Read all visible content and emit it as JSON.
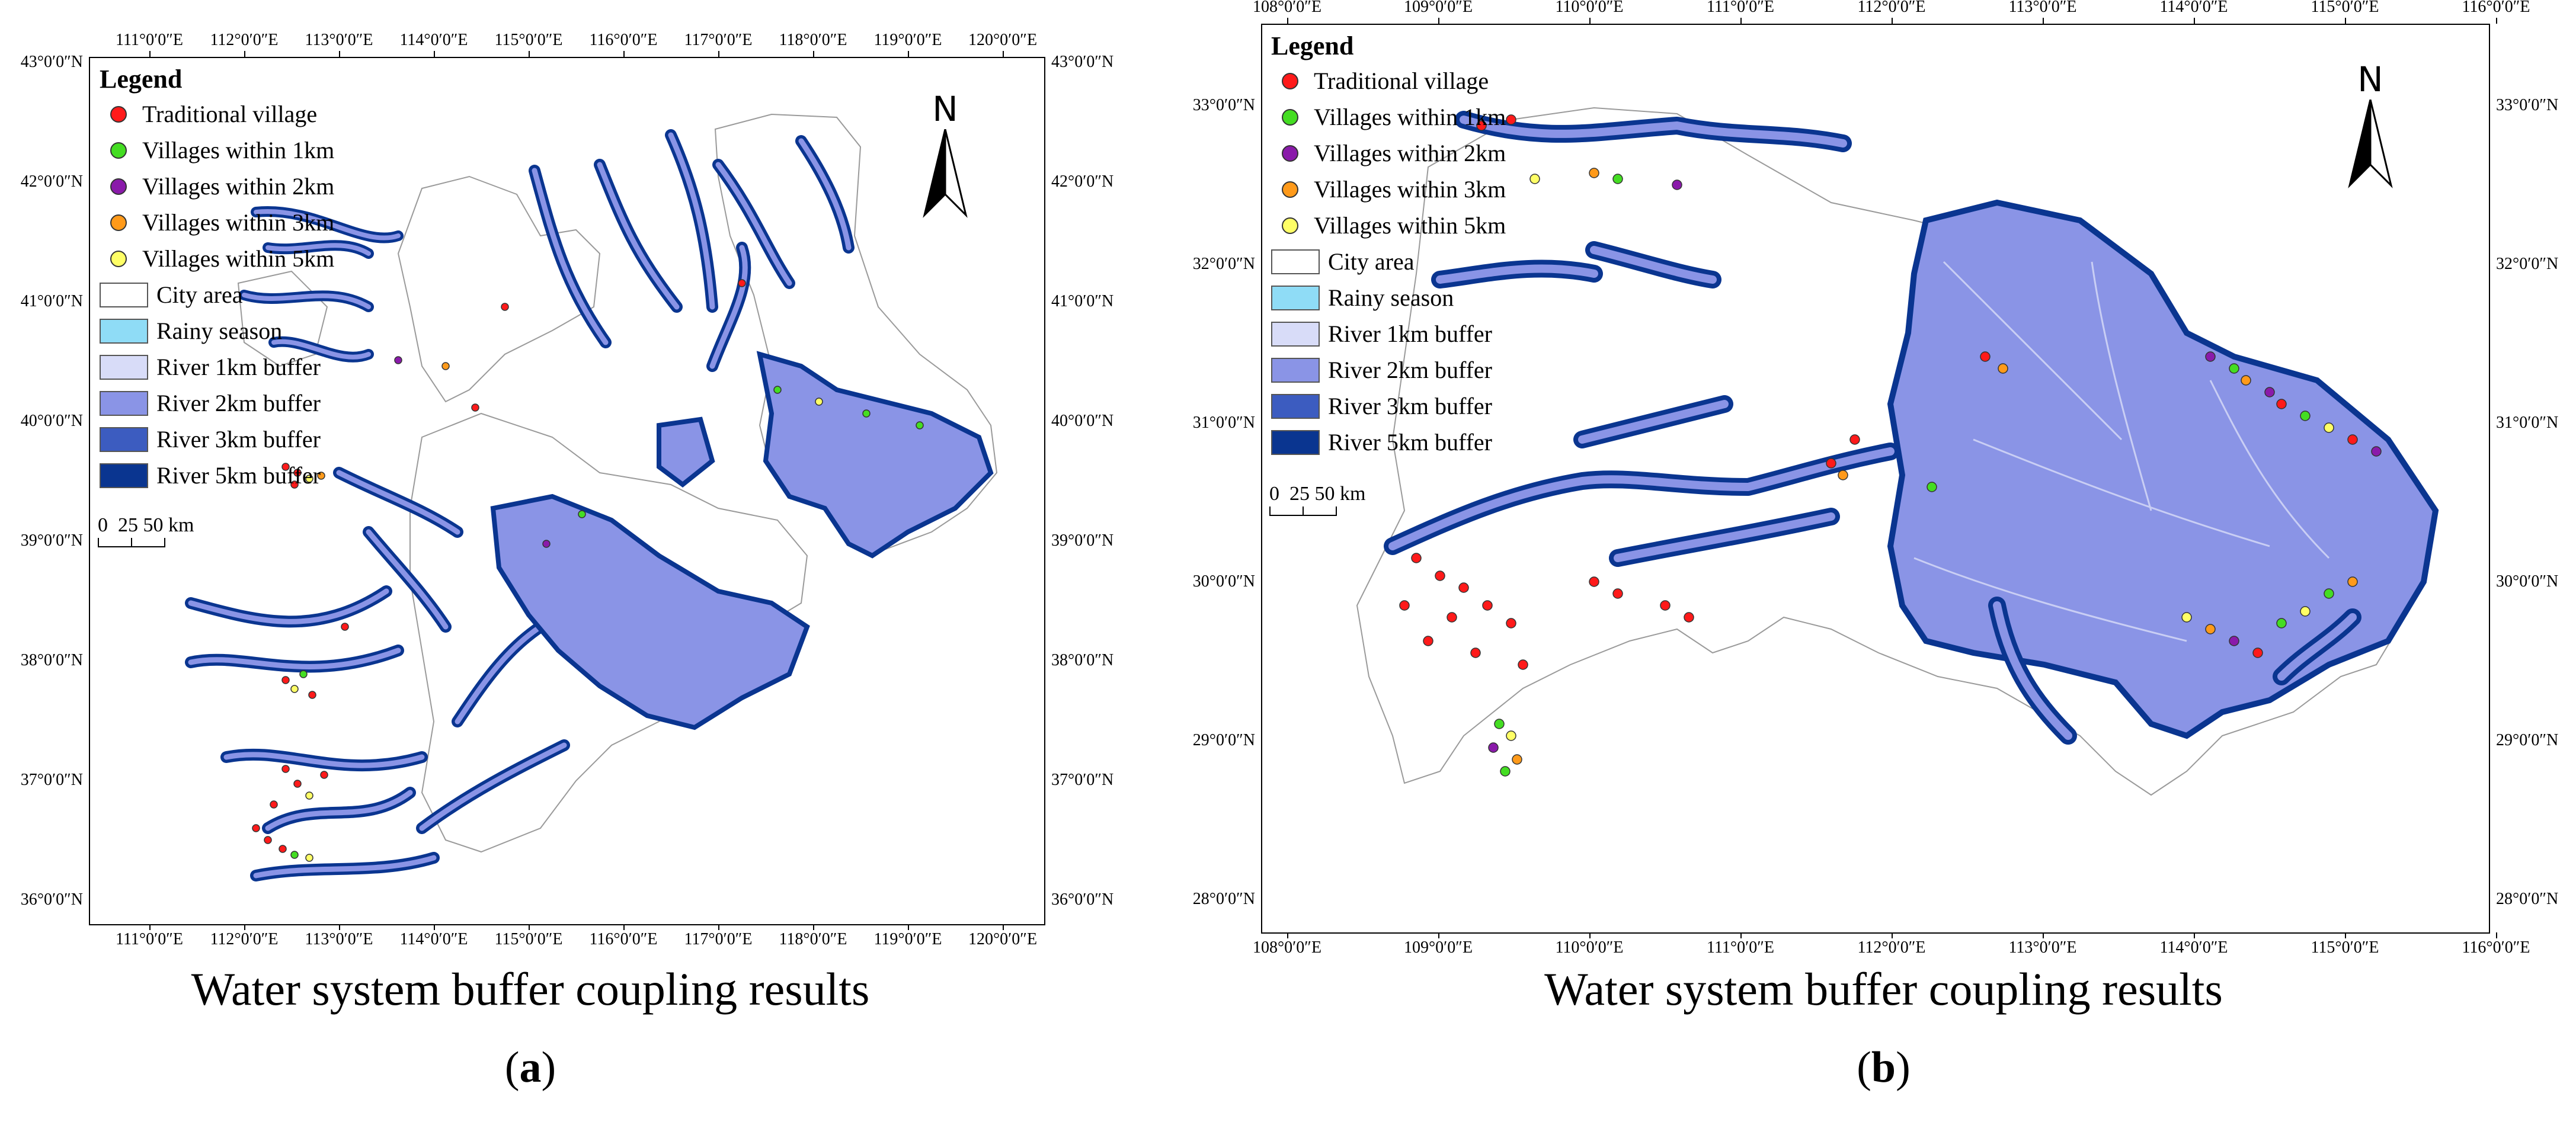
{
  "colors": {
    "traditional": "#ff1a1a",
    "within1": "#44dd22",
    "within2": "#8a1aaa",
    "within3": "#ff9a1a",
    "within5": "#ffff66",
    "city_fill": "#ffffff",
    "rainy": "#8fdcf6",
    "buffer1": "#d8dcf8",
    "buffer2": "#8a94e6",
    "buffer3": "#3c5cc0",
    "buffer5": "#0a3590"
  },
  "panels": [
    {
      "id": "a",
      "legend": {
        "title": "Legend",
        "items": [
          {
            "kind": "dot",
            "color": "#ff1a1a",
            "label": "Traditional village"
          },
          {
            "kind": "dot",
            "color": "#44dd22",
            "label": "Villages within 1km"
          },
          {
            "kind": "dot",
            "color": "#8a1aaa",
            "label": "Villages within 2km"
          },
          {
            "kind": "dot",
            "color": "#ff9a1a",
            "label": "Villages within 3km"
          },
          {
            "kind": "dot",
            "color": "#ffff66",
            "label": "Villages within 5km"
          },
          {
            "kind": "box",
            "color": "#ffffff",
            "label": "City area"
          },
          {
            "kind": "box",
            "color": "#8fdcf6",
            "label": "Rainy season"
          },
          {
            "kind": "box",
            "color": "#d8dcf8",
            "label": "River 1km buffer"
          },
          {
            "kind": "box",
            "color": "#8a94e6",
            "label": "River 2km buffer"
          },
          {
            "kind": "box",
            "color": "#3c5cc0",
            "label": "River 3km buffer"
          },
          {
            "kind": "box",
            "color": "#0a3590",
            "label": "River 5km buffer"
          }
        ]
      },
      "scale": {
        "label0": "0",
        "label1": "25",
        "label2": "50",
        "unit": "km"
      },
      "north": "N",
      "lon_ticks": [
        "111°0′0″E",
        "112°0′0″E",
        "113°0′0″E",
        "114°0′0″E",
        "115°0′0″E",
        "116°0′0″E",
        "117°0′0″E",
        "118°0′0″E",
        "119°0′0″E",
        "120°0′0″E"
      ],
      "lat_ticks": [
        "43°0′0″N",
        "42°0′0″N",
        "41°0′0″N",
        "40°0′0″N",
        "39°0′0″N",
        "38°0′0″N",
        "37°0′0″N",
        "36°0′0″N"
      ],
      "caption": "Water system buffer coupling results",
      "sublabel": {
        "open": "(",
        "letter": "a",
        "close": ")"
      }
    },
    {
      "id": "b",
      "legend": {
        "title": "Legend",
        "items": [
          {
            "kind": "dot",
            "color": "#ff1a1a",
            "label": "Traditional village"
          },
          {
            "kind": "dot",
            "color": "#44dd22",
            "label": "Villages within 1km"
          },
          {
            "kind": "dot",
            "color": "#8a1aaa",
            "label": "Villages within 2km"
          },
          {
            "kind": "dot",
            "color": "#ff9a1a",
            "label": "Villages within 3km"
          },
          {
            "kind": "dot",
            "color": "#ffff66",
            "label": "Villages within 5km"
          },
          {
            "kind": "box",
            "color": "#ffffff",
            "label": "City area"
          },
          {
            "kind": "box",
            "color": "#8fdcf6",
            "label": "Rainy season"
          },
          {
            "kind": "box",
            "color": "#d8dcf8",
            "label": "River 1km buffer"
          },
          {
            "kind": "box",
            "color": "#8a94e6",
            "label": "River 2km buffer"
          },
          {
            "kind": "box",
            "color": "#3c5cc0",
            "label": "River 3km buffer"
          },
          {
            "kind": "box",
            "color": "#0a3590",
            "label": "River 5km buffer"
          }
        ]
      },
      "scale": {
        "label0": "0",
        "label1": "25",
        "label2": "50",
        "unit": "km"
      },
      "north": "N",
      "lon_ticks": [
        "108°0′0″E",
        "109°0′0″E",
        "110°0′0″E",
        "111°0′0″E",
        "112°0′0″E",
        "113°0′0″E",
        "114°0′0″E",
        "115°0′0″E",
        "116°0′0″E"
      ],
      "lat_ticks": [
        "33°0′0″N",
        "32°0′0″N",
        "31°0′0″N",
        "30°0′0″N",
        "29°0′0″N",
        "28°0′0″N"
      ],
      "caption": "Water system buffer coupling results",
      "sublabel": {
        "open": "(",
        "letter": "b",
        "close": ")"
      }
    }
  ]
}
